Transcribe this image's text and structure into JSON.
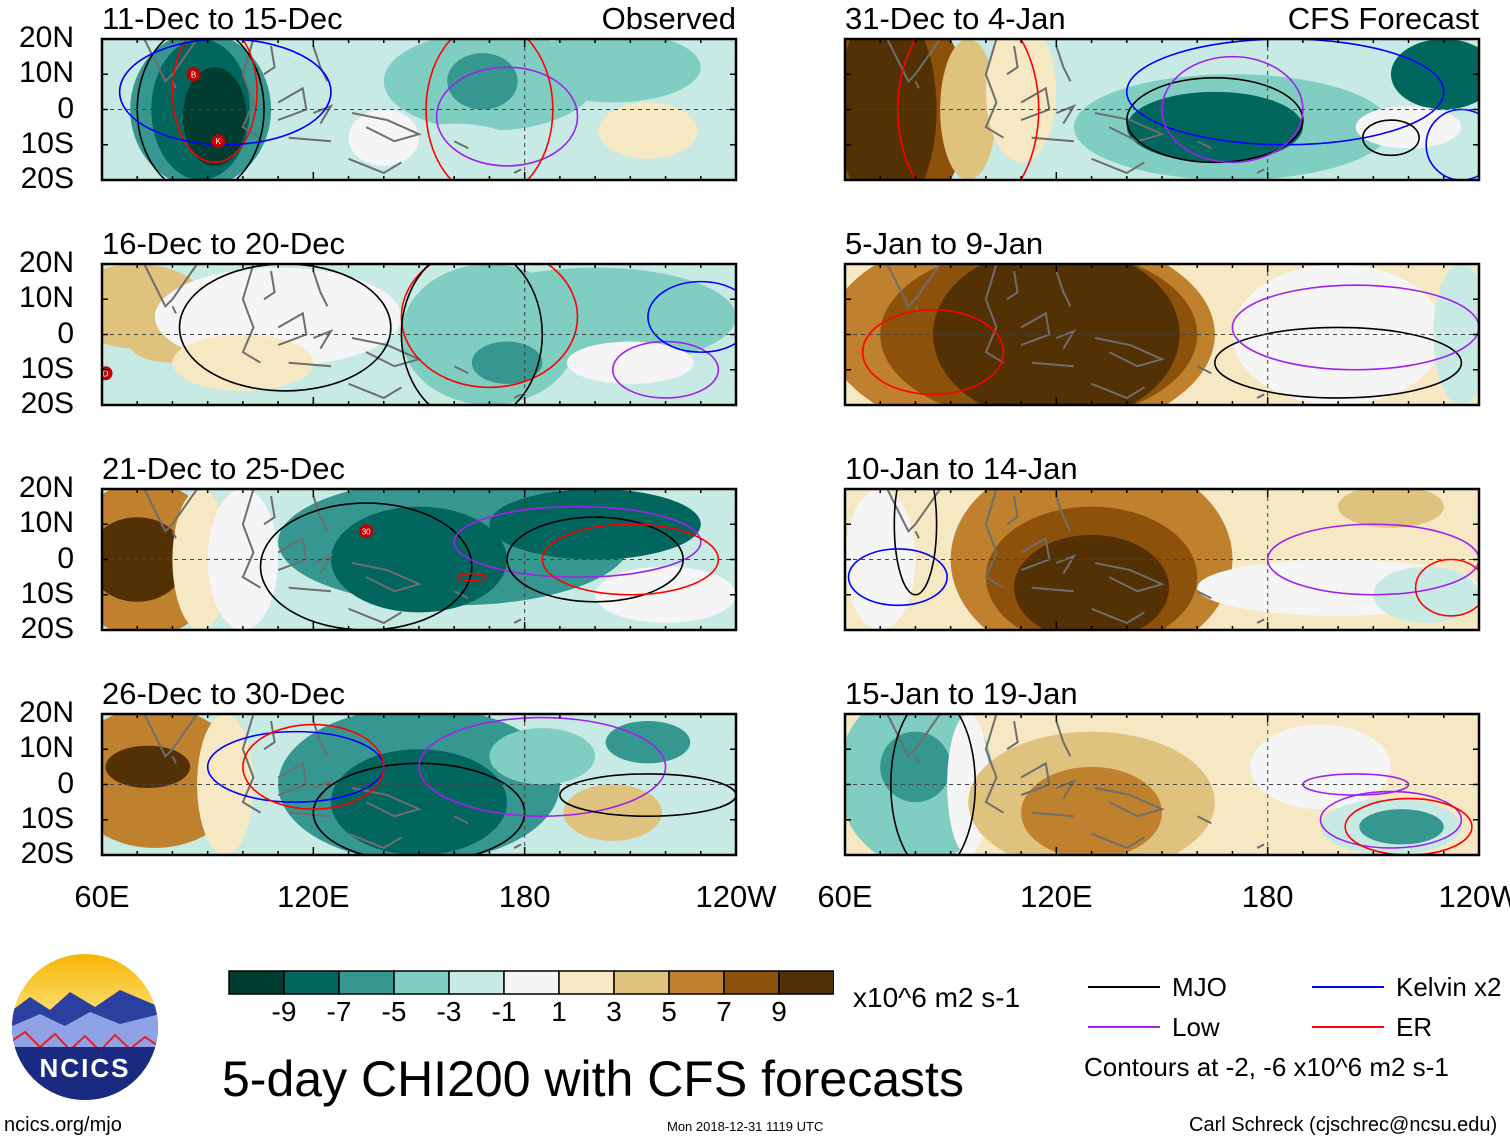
{
  "header": {
    "observed_label": "Observed",
    "forecast_label": "CFS Forecast"
  },
  "lat_labels": [
    "20N",
    "10N",
    "0",
    "10S",
    "20S"
  ],
  "lon_labels": [
    "60E",
    "120E",
    "180",
    "120W"
  ],
  "domain": {
    "lon_range": [
      60,
      240
    ],
    "lat_range": [
      -20,
      20
    ]
  },
  "panels": [
    {
      "title": "11-Dec to 15-Dec",
      "base": -2,
      "blobs": [
        [
          170,
          8,
          30,
          14,
          -4
        ],
        [
          205,
          12,
          25,
          10,
          -4
        ],
        [
          215,
          -6,
          14,
          8,
          1
        ],
        [
          160,
          -12,
          20,
          8,
          -3
        ],
        [
          88,
          0,
          20,
          22,
          -6
        ],
        [
          88,
          0,
          14,
          20,
          -9
        ],
        [
          92,
          -2,
          9,
          14,
          -11
        ],
        [
          168,
          8,
          10,
          8,
          -7
        ],
        [
          140,
          -8,
          10,
          8,
          0
        ]
      ],
      "contours": [
        [
          "mjo",
          88,
          0,
          18,
          24
        ],
        [
          "er",
          92,
          5,
          12,
          20
        ],
        [
          "kelvin",
          95,
          5,
          30,
          15
        ],
        [
          "low",
          175,
          -2,
          20,
          14
        ],
        [
          "er",
          170,
          0,
          18,
          25
        ]
      ],
      "storms": [
        [
          86,
          10,
          "B"
        ],
        [
          93,
          -9,
          "K"
        ]
      ]
    },
    {
      "title": "16-Dec to 20-Dec",
      "base": -2,
      "blobs": [
        [
          70,
          8,
          20,
          12,
          3
        ],
        [
          80,
          -3,
          12,
          5,
          3
        ],
        [
          110,
          5,
          35,
          14,
          0
        ],
        [
          100,
          -8,
          20,
          8,
          2
        ],
        [
          170,
          0,
          25,
          20,
          -4
        ],
        [
          200,
          5,
          40,
          14,
          -4
        ],
        [
          210,
          -8,
          18,
          6,
          -1
        ],
        [
          175,
          -8,
          10,
          6,
          -7
        ]
      ],
      "contours": [
        [
          "mjo",
          112,
          2,
          30,
          18
        ],
        [
          "er",
          170,
          5,
          25,
          20
        ],
        [
          "low",
          220,
          -10,
          15,
          8
        ],
        [
          "mjo",
          165,
          0,
          20,
          25
        ],
        [
          "kelvin",
          230,
          5,
          15,
          10
        ]
      ],
      "storms": [
        [
          61,
          -11,
          "D"
        ]
      ]
    },
    {
      "title": "21-Dec to 25-Dec",
      "base": -3,
      "blobs": [
        [
          72,
          0,
          22,
          22,
          5
        ],
        [
          70,
          0,
          14,
          12,
          9
        ],
        [
          88,
          0,
          8,
          20,
          1
        ],
        [
          100,
          0,
          10,
          20,
          -1
        ],
        [
          160,
          5,
          50,
          18,
          -6
        ],
        [
          150,
          0,
          25,
          15,
          -8
        ],
        [
          200,
          10,
          30,
          10,
          -8
        ],
        [
          220,
          -10,
          20,
          8,
          -1
        ]
      ],
      "contours": [
        [
          "mjo",
          135,
          -2,
          30,
          18
        ],
        [
          "low",
          195,
          5,
          35,
          10
        ],
        [
          "mjo",
          200,
          0,
          25,
          12
        ],
        [
          "er",
          210,
          0,
          25,
          10
        ],
        [
          "er",
          165,
          -5,
          4,
          1
        ]
      ],
      "storms": [
        [
          135,
          8,
          "30"
        ]
      ]
    },
    {
      "title": "26-Dec to 30-Dec",
      "base": -3,
      "blobs": [
        [
          75,
          2,
          25,
          20,
          5
        ],
        [
          73,
          5,
          12,
          6,
          9
        ],
        [
          95,
          0,
          8,
          20,
          1
        ],
        [
          150,
          0,
          40,
          22,
          -7
        ],
        [
          150,
          -5,
          25,
          15,
          -9
        ],
        [
          185,
          8,
          15,
          8,
          -5
        ],
        [
          205,
          -8,
          14,
          8,
          3
        ],
        [
          215,
          12,
          12,
          6,
          -7
        ]
      ],
      "contours": [
        [
          "mjo",
          150,
          -8,
          30,
          14
        ],
        [
          "kelvin",
          115,
          5,
          25,
          10
        ],
        [
          "er",
          120,
          5,
          20,
          12
        ],
        [
          "low",
          185,
          5,
          35,
          14
        ],
        [
          "mjo",
          215,
          -3,
          25,
          6
        ]
      ],
      "storms": []
    },
    {
      "title": "31-Dec to 4-Jan",
      "base": -2,
      "blobs": [
        [
          75,
          0,
          20,
          30,
          7
        ],
        [
          72,
          0,
          14,
          30,
          11
        ],
        [
          95,
          0,
          8,
          20,
          3
        ],
        [
          110,
          5,
          10,
          20,
          1
        ],
        [
          170,
          -5,
          45,
          15,
          -5
        ],
        [
          165,
          -5,
          25,
          10,
          -9
        ],
        [
          230,
          10,
          15,
          10,
          -8
        ],
        [
          220,
          -5,
          15,
          6,
          -1
        ]
      ],
      "contours": [
        [
          "mjo",
          165,
          -3,
          25,
          12
        ],
        [
          "kelvin",
          185,
          5,
          45,
          15
        ],
        [
          "er",
          95,
          0,
          20,
          30
        ],
        [
          "low",
          170,
          0,
          20,
          15
        ],
        [
          "mjo",
          215,
          -8,
          8,
          5
        ],
        [
          "kelvin",
          235,
          -10,
          10,
          10
        ]
      ],
      "storms": []
    },
    {
      "title": "5-Jan to 9-Jan",
      "base": 1,
      "blobs": [
        [
          110,
          0,
          55,
          30,
          5
        ],
        [
          115,
          0,
          45,
          25,
          8
        ],
        [
          120,
          0,
          35,
          25,
          11
        ],
        [
          200,
          0,
          30,
          20,
          0
        ],
        [
          235,
          0,
          8,
          20,
          -3
        ]
      ],
      "contours": [
        [
          "mjo",
          200,
          -8,
          35,
          10
        ],
        [
          "low",
          205,
          2,
          35,
          12
        ],
        [
          "er",
          85,
          -5,
          20,
          12
        ]
      ],
      "storms": []
    },
    {
      "title": "10-Jan to 14-Jan",
      "base": 1,
      "blobs": [
        [
          70,
          0,
          10,
          20,
          -1
        ],
        [
          130,
          0,
          40,
          30,
          5
        ],
        [
          130,
          -5,
          30,
          20,
          8
        ],
        [
          130,
          -8,
          22,
          15,
          11
        ],
        [
          200,
          -8,
          40,
          8,
          -1
        ],
        [
          225,
          -10,
          15,
          8,
          -3
        ],
        [
          215,
          15,
          15,
          6,
          3
        ]
      ],
      "contours": [
        [
          "kelvin",
          75,
          -5,
          14,
          8
        ],
        [
          "low",
          210,
          0,
          30,
          10
        ],
        [
          "er",
          232,
          -8,
          10,
          8
        ],
        [
          "mjo",
          80,
          10,
          6,
          20
        ]
      ],
      "storms": []
    },
    {
      "title": "15-Jan to 19-Jan",
      "base": 1,
      "blobs": [
        [
          80,
          2,
          22,
          25,
          -4
        ],
        [
          80,
          5,
          10,
          10,
          -7
        ],
        [
          95,
          0,
          6,
          20,
          0
        ],
        [
          130,
          -5,
          35,
          20,
          3
        ],
        [
          130,
          -8,
          20,
          13,
          5
        ],
        [
          195,
          5,
          20,
          12,
          -1
        ],
        [
          215,
          -12,
          20,
          8,
          -3
        ],
        [
          218,
          -12,
          12,
          5,
          -7
        ]
      ],
      "contours": [
        [
          "mjo",
          85,
          0,
          12,
          25
        ],
        [
          "low",
          205,
          0,
          15,
          3
        ],
        [
          "low",
          215,
          -10,
          20,
          8
        ],
        [
          "er",
          220,
          -12,
          18,
          8
        ]
      ],
      "storms": []
    }
  ],
  "colorbar": {
    "colors": [
      "#003c30",
      "#01665e",
      "#35978f",
      "#80cdc1",
      "#c7eae5",
      "#f5f5f5",
      "#f6e8c3",
      "#dfc27d",
      "#bf812d",
      "#8c510a",
      "#543005"
    ],
    "labels": [
      "-9",
      "-7",
      "-5",
      "-3",
      "-1",
      "1",
      "3",
      "5",
      "7",
      "9"
    ],
    "units": "x10^6 m2 s-1"
  },
  "legend": {
    "items": [
      {
        "key": "mjo",
        "label": "MJO",
        "color": "#000000"
      },
      {
        "key": "low",
        "label": "Low",
        "color": "#a020f0"
      },
      {
        "key": "kelvin",
        "label": "Kelvin x2",
        "color": "#0000ff"
      },
      {
        "key": "er",
        "label": "ER",
        "color": "#ff0000"
      }
    ],
    "note": "Contours at -2, -6 x10^6 m2 s-1"
  },
  "footer": {
    "title": "5-day CHI200 with CFS forecasts",
    "url": "ncics.org/mjo",
    "timestamp": "Mon 2018-12-31 1119 UTC",
    "author": "Carl Schreck (cjschrec@ncsu.edu)",
    "logo_text": "NCICS"
  },
  "land_color": "#6e6e6e"
}
